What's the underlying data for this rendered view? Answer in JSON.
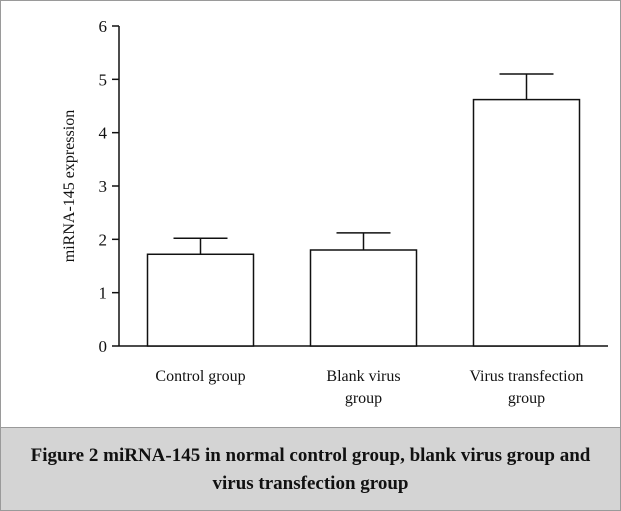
{
  "chart_data": {
    "type": "bar",
    "categories": [
      [
        "Control group"
      ],
      [
        "Blank virus",
        "group"
      ],
      [
        "Virus transfection",
        "group"
      ]
    ],
    "values": [
      1.72,
      1.8,
      4.62
    ],
    "errors": [
      0.3,
      0.32,
      0.48
    ],
    "ylabel": "miRNA-145 expression",
    "xlabel": "",
    "ylim": [
      0,
      6
    ],
    "yticks": [
      0,
      1,
      2,
      3,
      4,
      5,
      6
    ],
    "grid": false,
    "bar_fill": "#ffffff",
    "stroke_color": "#111111"
  },
  "caption": "Figure 2    miRNA-145 in normal control group, blank virus group and virus transfection group",
  "caption_band_color": "#d4d4d4"
}
